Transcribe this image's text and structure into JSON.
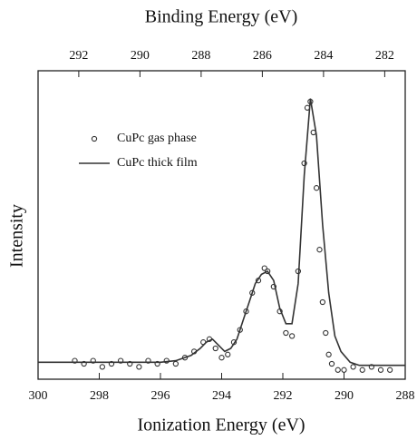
{
  "chart_data": {
    "type": "line",
    "xlabel": "Ionization Energy (eV)",
    "x2label": "Binding Energy (eV)",
    "ylabel": "Intensity",
    "xlim": [
      300,
      288
    ],
    "xticks": [
      300,
      298,
      296,
      294,
      292,
      290,
      288
    ],
    "x2lim": [
      293.33,
      281.33
    ],
    "x2ticks": [
      292,
      290,
      288,
      286,
      284,
      282
    ],
    "ylim": [
      0,
      1
    ],
    "legend": "upper left",
    "series": [
      {
        "name": "CuPc gas phase",
        "mode": "markers",
        "color": "#333333",
        "x": [
          298.8,
          298.5,
          298.2,
          297.9,
          297.6,
          297.3,
          297.0,
          296.7,
          296.4,
          296.1,
          295.8,
          295.5,
          295.2,
          294.9,
          294.6,
          294.4,
          294.2,
          294.0,
          293.8,
          293.6,
          293.4,
          293.2,
          293.0,
          292.8,
          292.6,
          292.5,
          292.3,
          292.1,
          291.9,
          291.7,
          291.5,
          291.3,
          291.2,
          291.1,
          291.0,
          290.9,
          290.8,
          290.7,
          290.6,
          290.5,
          290.4,
          290.2,
          290.0,
          289.7,
          289.4,
          289.1,
          288.8,
          288.5
        ],
        "values": [
          0.06,
          0.05,
          0.06,
          0.04,
          0.05,
          0.06,
          0.05,
          0.04,
          0.06,
          0.05,
          0.06,
          0.05,
          0.07,
          0.09,
          0.12,
          0.13,
          0.1,
          0.07,
          0.08,
          0.12,
          0.16,
          0.22,
          0.28,
          0.32,
          0.36,
          0.35,
          0.3,
          0.22,
          0.15,
          0.14,
          0.35,
          0.7,
          0.88,
          0.9,
          0.8,
          0.62,
          0.42,
          0.25,
          0.15,
          0.08,
          0.05,
          0.03,
          0.03,
          0.04,
          0.03,
          0.04,
          0.03,
          0.03
        ]
      },
      {
        "name": "CuPc thick film",
        "mode": "lines",
        "color": "#333333",
        "x": [
          300,
          299,
          298,
          297,
          296,
          295.5,
          295,
          294.7,
          294.5,
          294.3,
          294.1,
          293.9,
          293.7,
          293.5,
          293.3,
          293.1,
          292.9,
          292.7,
          292.5,
          292.3,
          292.1,
          291.9,
          291.7,
          291.5,
          291.3,
          291.1,
          290.9,
          290.7,
          290.5,
          290.3,
          290.1,
          289.8,
          289.5,
          289,
          288.5,
          288
        ],
        "values": [
          0.055,
          0.055,
          0.055,
          0.055,
          0.055,
          0.06,
          0.077,
          0.1,
          0.12,
          0.13,
          0.11,
          0.09,
          0.1,
          0.13,
          0.19,
          0.25,
          0.31,
          0.34,
          0.35,
          0.32,
          0.23,
          0.18,
          0.18,
          0.31,
          0.66,
          0.91,
          0.79,
          0.5,
          0.28,
          0.14,
          0.09,
          0.055,
          0.045,
          0.045,
          0.045,
          0.045
        ]
      }
    ]
  }
}
